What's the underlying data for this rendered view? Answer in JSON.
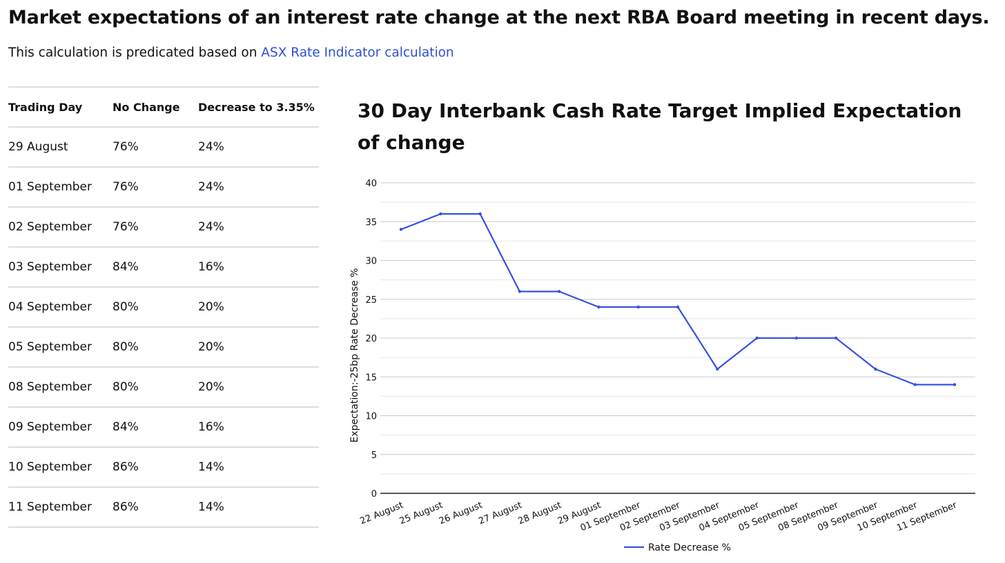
{
  "page": {
    "title": "Market expectations of an interest rate change at the next RBA Board meeting in recent days.",
    "intro_text": "This calculation is predicated based on ",
    "intro_link": "ASX Rate Indicator calculation"
  },
  "table": {
    "headers": [
      "Trading Day",
      "No Change",
      "Decrease to 3.35%"
    ],
    "rows": [
      [
        "29 August",
        "76%",
        "24%"
      ],
      [
        "01 September",
        "76%",
        "24%"
      ],
      [
        "02 September",
        "76%",
        "24%"
      ],
      [
        "03 September",
        "84%",
        "16%"
      ],
      [
        "04 September",
        "80%",
        "20%"
      ],
      [
        "05 September",
        "80%",
        "20%"
      ],
      [
        "08 September",
        "80%",
        "20%"
      ],
      [
        "09 September",
        "84%",
        "16%"
      ],
      [
        "10 September",
        "86%",
        "14%"
      ],
      [
        "11 September",
        "86%",
        "14%"
      ]
    ]
  },
  "chart_data": {
    "type": "line",
    "title": "30 Day Interbank Cash Rate Target Implied Expectation of change",
    "xlabel": "",
    "ylabel": "Expectation:-25bp Rate Decrease %",
    "categories": [
      "22 August",
      "25 August",
      "26 August",
      "27 August",
      "28 August",
      "29 August",
      "01 September",
      "02 September",
      "03 September",
      "04 September",
      "05 September",
      "08 September",
      "09 September",
      "10 September",
      "11 September"
    ],
    "series": [
      {
        "name": "Rate Decrease %",
        "values": [
          34,
          36,
          36,
          26,
          26,
          24,
          24,
          24,
          16,
          20,
          20,
          20,
          16,
          14,
          14
        ],
        "color": "#3650e0"
      }
    ],
    "ylim": [
      0,
      40
    ],
    "yticks": [
      0,
      5,
      10,
      15,
      20,
      25,
      30,
      35,
      40
    ],
    "grid": true,
    "legend": "bottom-center"
  }
}
